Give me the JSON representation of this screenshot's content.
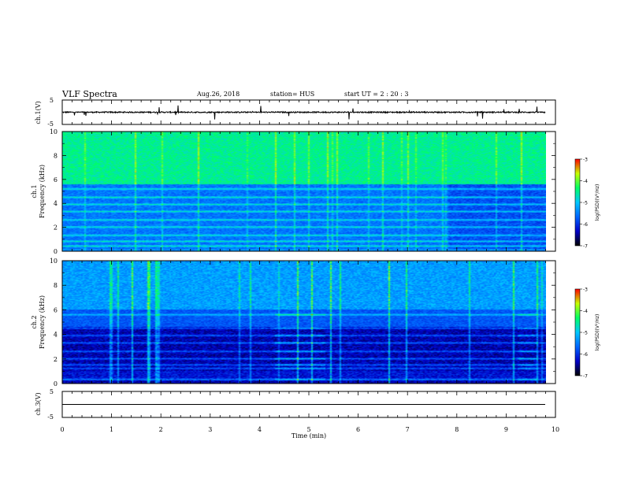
{
  "header": {
    "title": "VLF Spectra",
    "date": "Aug.26, 2018",
    "station": "station= HUS",
    "start": "start  UT  =   2  : 20 : 3"
  },
  "colors": {
    "colormap": [
      "#000000",
      "#0000c8",
      "#0066ff",
      "#00c8ff",
      "#00ff64",
      "#c8ff00",
      "#ff0000",
      "#ffffff"
    ],
    "trace": "#000000"
  },
  "chart_data": [
    {
      "type": "line",
      "panel": "ch1-waveform",
      "ylabel": "ch.1(V)",
      "ylim": [
        -5,
        5
      ],
      "yticks": [
        "5",
        "-5"
      ],
      "description_values": {
        "baseline": 0,
        "spikes_min": -3,
        "spikes_max": 3
      }
    },
    {
      "type": "heatmap",
      "panel": "ch1-spectrogram",
      "ylabel": "Frequency (kHz)",
      "channel_label": "ch.1",
      "ylim": [
        0,
        10
      ],
      "yticks": [
        "0",
        "2",
        "4",
        "6",
        "8",
        "10"
      ],
      "colorbar": {
        "label": "log(PSD)(V²/Hz)",
        "range": [
          -7,
          -3
        ],
        "ticks": [
          "-3",
          "-4",
          "-5",
          "-6",
          "-7"
        ]
      },
      "bands_khz": [
        0.4,
        0.8,
        1.3,
        2.0,
        2.6,
        3.3,
        3.9,
        4.5,
        5.2
      ],
      "dominant_band_khz": [
        6,
        10
      ]
    },
    {
      "type": "heatmap",
      "panel": "ch2-spectrogram",
      "ylabel": "Frequency (kHz)",
      "channel_label": "ch.2",
      "ylim": [
        0,
        10
      ],
      "yticks": [
        "0",
        "2",
        "4",
        "6",
        "8",
        "10"
      ],
      "colorbar": {
        "label": "log(PSD)(V²/Hz)",
        "range": [
          -7,
          -3
        ],
        "ticks": [
          "-3",
          "-4",
          "-5",
          "-6",
          "-7"
        ]
      },
      "bands_khz": [
        0.3,
        1.2,
        1.5,
        2.0,
        2.6,
        3.3,
        3.9,
        4.5,
        5.6
      ],
      "bright_patches_min": [
        [
          4.3,
          5.3
        ],
        [
          9.2,
          9.6
        ]
      ]
    },
    {
      "type": "line",
      "panel": "ch3-waveform",
      "ylabel": "ch.3(V)",
      "ylim": [
        -5,
        5
      ],
      "yticks": [
        "5",
        "-5"
      ],
      "description_values": {
        "baseline": 0
      }
    }
  ],
  "xaxis": {
    "label": "Time  (min)",
    "ticks": [
      "0",
      "1",
      "2",
      "3",
      "4",
      "5",
      "6",
      "7",
      "8",
      "9",
      "10"
    ],
    "xlim": [
      0,
      10
    ],
    "data_end_min": 9.8
  }
}
